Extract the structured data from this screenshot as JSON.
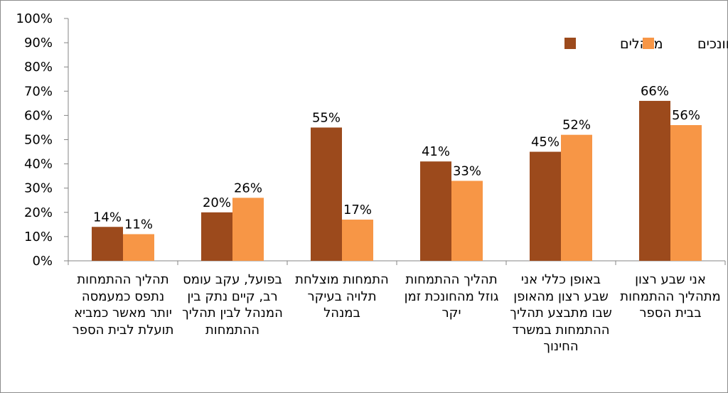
{
  "chart_data": {
    "type": "bar",
    "categories": [
      "תהליך ההתמחות נתפס כמעמסה יותר מאשר כמביא תועלת לבית הספר",
      "בפועל, עקב עומס רב, קיים נתק בין המנהל לבין תהליך ההתמחות",
      "התמחות מוצלחת תלויה בעיקר במנהל",
      "תהליך ההתמחות גוזל מהחונכת זמן יקר",
      "באופן כללי אני שבע רצון מהאופן שבו מתבצע תהליך ההתמחות במשרד החינוך",
      "אני שבע רצון מתהליך ההתמחות בבית הספר"
    ],
    "series": [
      {
        "name": "מנהלים",
        "color": "#9c4a1c",
        "values": [
          14,
          20,
          55,
          41,
          45,
          66
        ]
      },
      {
        "name": "חונכים",
        "color": "#f79646",
        "values": [
          11,
          26,
          17,
          33,
          52,
          56
        ]
      }
    ],
    "data_labels": [
      [
        "14%",
        "20%",
        "55%",
        "41%",
        "45%",
        "66%"
      ],
      [
        "11%",
        "26%",
        "17%",
        "33%",
        "52%",
        "56%"
      ]
    ],
    "y_ticks": [
      "0%",
      "10%",
      "20%",
      "30%",
      "40%",
      "50%",
      "60%",
      "70%",
      "80%",
      "90%",
      "100%"
    ],
    "ylim": [
      0,
      100
    ],
    "grid": false,
    "legend_position": "top-right"
  }
}
